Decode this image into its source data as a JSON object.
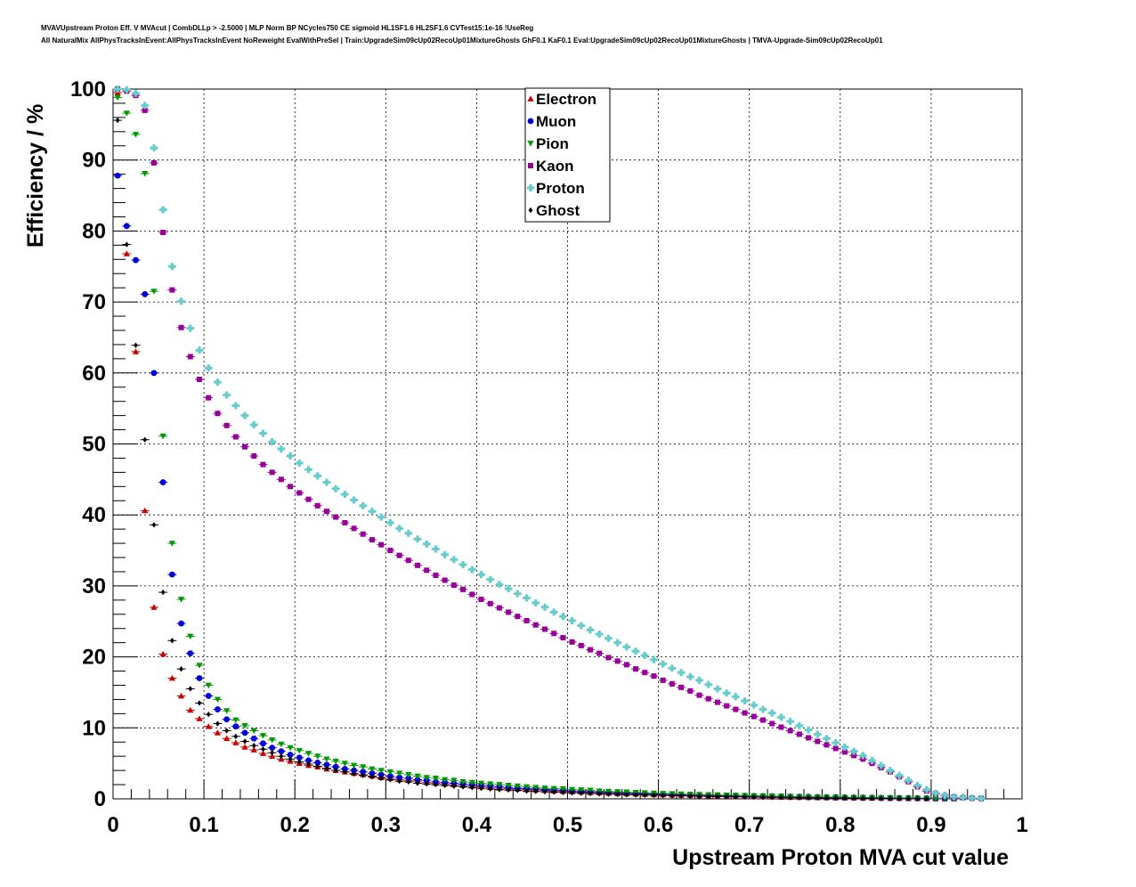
{
  "header": {
    "title_line1": "MVAVUpstream Proton Eff. V MVAcut | CombDLLp > -2.5000 | MLP Norm BP NCycles750 CE sigmoid HL1SF1.6 HL2SF1.6 CVTest15:1e-16 !UseReg",
    "title_line2": "All NaturalMix AllPhysTracksInEvent:AllPhysTracksInEvent NoReweight EvalWithPreSel | Train:UpgradeSim09cUp02RecoUp01MixtureGhosts GhF0.1 KaF0.1 Eval:UpgradeSim09cUp02RecoUp01MixtureGhosts | TMVA-Upgrade-Sim09cUp02RecoUp01"
  },
  "chart_data": {
    "type": "scatter",
    "xlabel": "Upstream Proton MVA cut value",
    "ylabel": "Efficiency / %",
    "xlim": [
      0,
      1
    ],
    "ylim": [
      0,
      100
    ],
    "xticks": [
      "0",
      "0.1",
      "0.2",
      "0.3",
      "0.4",
      "0.5",
      "0.6",
      "0.7",
      "0.8",
      "0.9",
      "1"
    ],
    "yticks": [
      "0",
      "10",
      "20",
      "30",
      "40",
      "50",
      "60",
      "70",
      "80",
      "90",
      "100"
    ],
    "grid": true,
    "legend_position": "top-center",
    "x": [
      0.005,
      0.015,
      0.025,
      0.035,
      0.045,
      0.055,
      0.065,
      0.075,
      0.085,
      0.095,
      0.105,
      0.115,
      0.125,
      0.135,
      0.145,
      0.155,
      0.165,
      0.175,
      0.185,
      0.195,
      0.205,
      0.215,
      0.225,
      0.235,
      0.245,
      0.255,
      0.265,
      0.275,
      0.285,
      0.295,
      0.305,
      0.315,
      0.325,
      0.335,
      0.345,
      0.355,
      0.365,
      0.375,
      0.385,
      0.395,
      0.405,
      0.415,
      0.425,
      0.435,
      0.445,
      0.455,
      0.465,
      0.475,
      0.485,
      0.495,
      0.505,
      0.515,
      0.525,
      0.535,
      0.545,
      0.555,
      0.565,
      0.575,
      0.585,
      0.595,
      0.605,
      0.615,
      0.625,
      0.635,
      0.645,
      0.655,
      0.665,
      0.675,
      0.685,
      0.695,
      0.705,
      0.715,
      0.725,
      0.735,
      0.745,
      0.755,
      0.765,
      0.775,
      0.785,
      0.795,
      0.805,
      0.815,
      0.825,
      0.835,
      0.845,
      0.855,
      0.865,
      0.875,
      0.885,
      0.895,
      0.905,
      0.915,
      0.925,
      0.935,
      0.945,
      0.955
    ],
    "series": [
      {
        "name": "Electron",
        "color": "#cc0000",
        "marker": "triangle-up",
        "values": [
          99.5,
          76.8,
          63.0,
          40.6,
          27.0,
          20.4,
          17.0,
          14.5,
          12.5,
          11.3,
          10.2,
          9.3,
          8.5,
          7.9,
          7.3,
          6.9,
          6.4,
          6.0,
          5.6,
          5.3,
          5.0,
          4.7,
          4.5,
          4.2,
          4.0,
          3.8,
          3.6,
          3.4,
          3.2,
          3.0,
          2.9,
          2.7,
          2.6,
          2.5,
          2.3,
          2.2,
          2.1,
          2.0,
          1.9,
          1.8,
          1.7,
          1.6,
          1.5,
          1.45,
          1.4,
          1.3,
          1.25,
          1.2,
          1.1,
          1.05,
          1.0,
          0.95,
          0.9,
          0.85,
          0.8,
          0.75,
          0.72,
          0.68,
          0.64,
          0.6,
          0.57,
          0.54,
          0.5,
          0.48,
          0.45,
          0.42,
          0.4,
          0.37,
          0.35,
          0.33,
          0.3,
          0.28,
          0.26,
          0.24,
          0.22,
          0.2,
          0.19,
          0.17,
          0.16,
          0.14,
          0.13,
          0.12,
          0.1,
          0.09,
          0.08,
          0.07,
          0.06,
          0.05,
          0.04,
          0.03,
          0.02,
          0.015,
          0.01,
          null,
          null,
          null
        ]
      },
      {
        "name": "Muon",
        "color": "#0000dd",
        "marker": "circle",
        "values": [
          87.8,
          80.7,
          75.9,
          71.1,
          60.0,
          44.6,
          31.6,
          24.7,
          20.5,
          17.0,
          14.5,
          12.6,
          11.2,
          10.2,
          9.3,
          8.5,
          7.8,
          7.2,
          6.7,
          6.2,
          5.8,
          5.4,
          5.1,
          4.8,
          4.5,
          4.2,
          4.0,
          3.8,
          3.6,
          3.4,
          3.2,
          3.0,
          2.9,
          2.7,
          2.6,
          2.4,
          2.3,
          2.2,
          2.1,
          2.0,
          1.9,
          1.8,
          1.7,
          1.6,
          1.5,
          1.45,
          1.4,
          1.3,
          1.25,
          1.2,
          1.1,
          1.05,
          1.0,
          0.95,
          0.9,
          0.85,
          0.8,
          0.77,
          0.74,
          0.7,
          0.67,
          0.64,
          0.6,
          0.58,
          0.55,
          0.52,
          0.5,
          0.47,
          0.45,
          0.43,
          0.41,
          0.39,
          0.37,
          0.35,
          0.33,
          0.31,
          0.29,
          0.27,
          0.25,
          0.24,
          0.22,
          0.2,
          0.19,
          0.17,
          0.16,
          0.14,
          0.13,
          0.12,
          0.1,
          0.09,
          0.08,
          0.07,
          0.06,
          null,
          null,
          null
        ]
      },
      {
        "name": "Pion",
        "color": "#009900",
        "marker": "triangle-down",
        "values": [
          98.8,
          96.6,
          93.6,
          88.1,
          71.5,
          51.1,
          36.0,
          28.1,
          22.9,
          18.8,
          16.0,
          14.0,
          12.4,
          11.1,
          10.3,
          9.6,
          8.9,
          8.3,
          7.7,
          7.2,
          6.8,
          6.4,
          6.0,
          5.6,
          5.3,
          5.0,
          4.7,
          4.5,
          4.2,
          4.0,
          3.8,
          3.6,
          3.4,
          3.2,
          3.0,
          2.9,
          2.7,
          2.6,
          2.4,
          2.3,
          2.2,
          2.1,
          2.0,
          1.9,
          1.8,
          1.7,
          1.6,
          1.5,
          1.45,
          1.4,
          1.3,
          1.25,
          1.2,
          1.1,
          1.05,
          1.0,
          0.95,
          0.9,
          0.85,
          0.8,
          0.76,
          0.72,
          0.68,
          0.65,
          0.61,
          0.58,
          0.55,
          0.52,
          0.49,
          0.46,
          0.43,
          0.41,
          0.38,
          0.36,
          0.34,
          0.31,
          0.29,
          0.27,
          0.25,
          0.23,
          0.21,
          0.19,
          0.18,
          0.16,
          0.14,
          0.13,
          0.11,
          0.1,
          0.09,
          0.08,
          0.07,
          0.06,
          0.05,
          null,
          null,
          null
        ]
      },
      {
        "name": "Kaon",
        "color": "#990099",
        "marker": "square",
        "values": [
          100.0,
          99.7,
          99.1,
          97.0,
          89.6,
          79.8,
          71.7,
          66.4,
          62.3,
          59.1,
          56.5,
          54.3,
          52.6,
          51.0,
          49.6,
          48.3,
          47.1,
          46.0,
          45.0,
          44.0,
          43.1,
          42.2,
          41.3,
          40.5,
          39.7,
          38.9,
          38.1,
          37.3,
          36.5,
          35.8,
          35.0,
          34.3,
          33.6,
          32.9,
          32.2,
          31.5,
          30.8,
          30.1,
          29.5,
          28.8,
          28.1,
          27.5,
          26.9,
          26.3,
          25.7,
          25.1,
          24.5,
          23.9,
          23.3,
          22.7,
          22.1,
          21.6,
          21.0,
          20.5,
          19.9,
          19.4,
          18.9,
          18.3,
          17.8,
          17.3,
          16.7,
          16.2,
          15.7,
          15.2,
          14.6,
          14.1,
          13.6,
          13.1,
          12.6,
          12.1,
          11.6,
          11.1,
          10.6,
          10.1,
          9.6,
          9.1,
          8.6,
          8.1,
          7.6,
          7.1,
          6.6,
          6.1,
          5.6,
          5.0,
          4.4,
          3.8,
          3.1,
          2.4,
          1.7,
          1.1,
          0.7,
          0.4,
          0.25,
          0.15,
          0.1,
          0.05
        ]
      },
      {
        "name": "Proton",
        "color": "#66cccc",
        "marker": "cross",
        "values": [
          100.0,
          99.9,
          99.4,
          97.7,
          91.7,
          83.0,
          75.0,
          70.1,
          66.3,
          63.2,
          60.7,
          58.7,
          56.9,
          55.4,
          54.0,
          52.7,
          51.5,
          50.3,
          49.3,
          48.3,
          47.3,
          46.4,
          45.5,
          44.6,
          43.7,
          42.9,
          42.1,
          41.3,
          40.5,
          39.7,
          38.9,
          38.1,
          37.4,
          36.6,
          35.9,
          35.2,
          34.4,
          33.7,
          33.0,
          32.3,
          31.6,
          30.9,
          30.2,
          29.6,
          28.9,
          28.3,
          27.6,
          27.0,
          26.3,
          25.7,
          25.1,
          24.4,
          23.8,
          23.2,
          22.6,
          22.0,
          21.4,
          20.8,
          20.2,
          19.6,
          19.0,
          18.4,
          17.8,
          17.2,
          16.7,
          16.1,
          15.5,
          14.9,
          14.4,
          13.8,
          13.2,
          12.6,
          12.1,
          11.5,
          10.9,
          10.3,
          9.7,
          9.1,
          8.5,
          7.9,
          7.3,
          6.7,
          6.1,
          5.4,
          4.7,
          4.0,
          3.3,
          2.6,
          1.9,
          1.3,
          0.8,
          0.5,
          0.3,
          0.2,
          0.1,
          0.05
        ]
      },
      {
        "name": "Ghost",
        "color": "#000000",
        "marker": "diamond",
        "values": [
          95.6,
          78.1,
          63.9,
          50.6,
          38.6,
          29.1,
          22.3,
          18.3,
          15.5,
          13.5,
          11.9,
          10.6,
          9.6,
          8.8,
          8.1,
          7.5,
          7.0,
          6.5,
          6.0,
          5.6,
          5.2,
          4.9,
          4.6,
          4.3,
          4.0,
          3.8,
          3.5,
          3.3,
          3.1,
          2.9,
          2.7,
          2.5,
          2.4,
          2.2,
          2.1,
          2.0,
          1.9,
          1.8,
          1.7,
          1.6,
          1.5,
          1.4,
          1.3,
          1.25,
          1.2,
          1.1,
          1.05,
          1.0,
          0.95,
          0.9,
          0.85,
          0.8,
          0.75,
          0.7,
          0.66,
          0.62,
          0.58,
          0.55,
          0.52,
          0.49,
          0.46,
          0.43,
          0.41,
          0.38,
          0.36,
          0.34,
          0.32,
          0.3,
          0.28,
          0.26,
          0.24,
          0.22,
          0.2,
          0.19,
          0.17,
          0.16,
          0.14,
          0.13,
          0.12,
          0.1,
          0.09,
          0.08,
          0.07,
          0.06,
          0.05,
          0.04,
          0.03,
          0.02,
          0.02,
          0.01,
          null,
          null,
          null,
          null,
          null,
          null
        ]
      }
    ]
  }
}
